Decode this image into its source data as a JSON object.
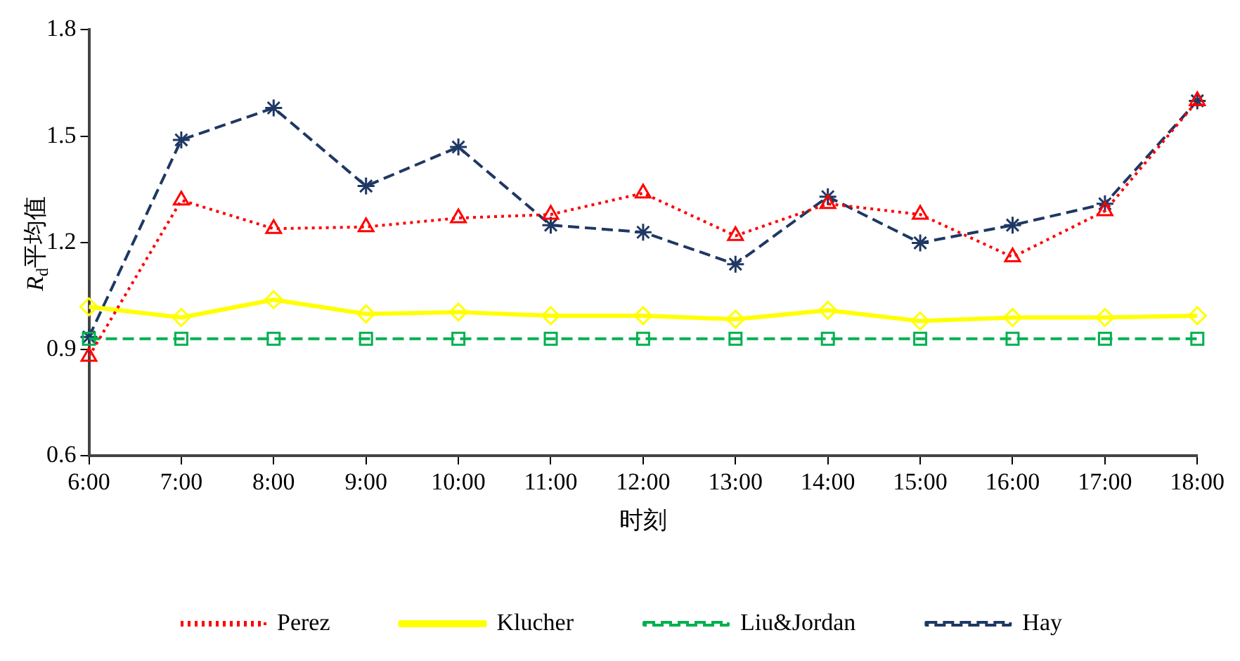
{
  "chart_data": {
    "type": "line",
    "xlabel": "时刻",
    "ylabel": "R$_{d}$平均值",
    "categories": [
      "6:00",
      "7:00",
      "8:00",
      "9:00",
      "10:00",
      "11:00",
      "12:00",
      "13:00",
      "14:00",
      "15:00",
      "16:00",
      "17:00",
      "18:00"
    ],
    "series": [
      {
        "name": "Perez",
        "color": "#ff0000",
        "marker": "triangle",
        "line_style": "dotted",
        "values": [
          0.88,
          1.32,
          1.24,
          1.245,
          1.27,
          1.28,
          1.34,
          1.22,
          1.31,
          1.28,
          1.16,
          1.29,
          1.6
        ]
      },
      {
        "name": "Klucher",
        "color": "#ffff00",
        "marker": "diamond",
        "line_style": "solid",
        "values": [
          1.02,
          0.99,
          1.04,
          1.0,
          1.005,
          0.995,
          0.995,
          0.985,
          1.01,
          0.98,
          0.99,
          0.99,
          0.995
        ]
      },
      {
        "name": "Liu&Jordan",
        "color": "#00b050",
        "marker": "square",
        "line_style": "dashed",
        "values": [
          0.93,
          0.93,
          0.93,
          0.93,
          0.93,
          0.93,
          0.93,
          0.93,
          0.93,
          0.93,
          0.93,
          0.93,
          0.93
        ]
      },
      {
        "name": "Hay",
        "color": "#1f3864",
        "marker": "cross",
        "line_style": "dashed",
        "values": [
          0.935,
          1.49,
          1.58,
          1.36,
          1.47,
          1.25,
          1.23,
          1.14,
          1.33,
          1.2,
          1.25,
          1.31,
          1.6
        ]
      }
    ],
    "ylim": [
      0.6,
      1.8
    ],
    "yticks": [
      0.6,
      0.9,
      1.2,
      1.5,
      1.8
    ],
    "grid": false,
    "legend": "bottom"
  }
}
